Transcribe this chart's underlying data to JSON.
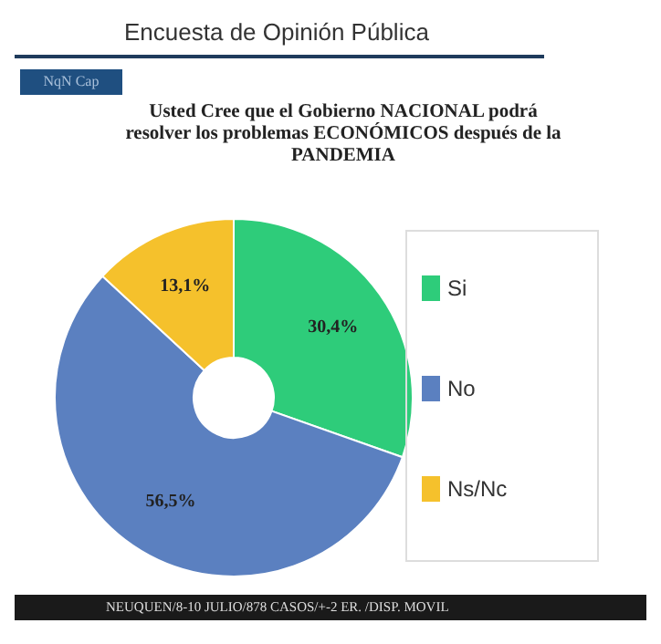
{
  "chart_data": {
    "type": "donut",
    "subtitle": "Encuesta de Opinión Pública",
    "title": "Usted Cree que el Gobierno NACIONAL podrá resolver los problemas ECONÓMICOS después de la PANDEMIA",
    "categories": [
      "Si",
      "No",
      "Ns/Nc"
    ],
    "values": [
      30.4,
      56.5,
      13.1
    ],
    "colors": [
      "#2ecc7a",
      "#5b80c0",
      "#f5c12c"
    ],
    "value_labels": [
      "30,4%",
      "56,5%",
      "13,1%"
    ],
    "legend": "right",
    "annotations": [
      "NqN Cap",
      "NEUQUEN/8-10 JULIO/878 CASOS/+-2 ER. /DISP. MOVIL"
    ]
  }
}
